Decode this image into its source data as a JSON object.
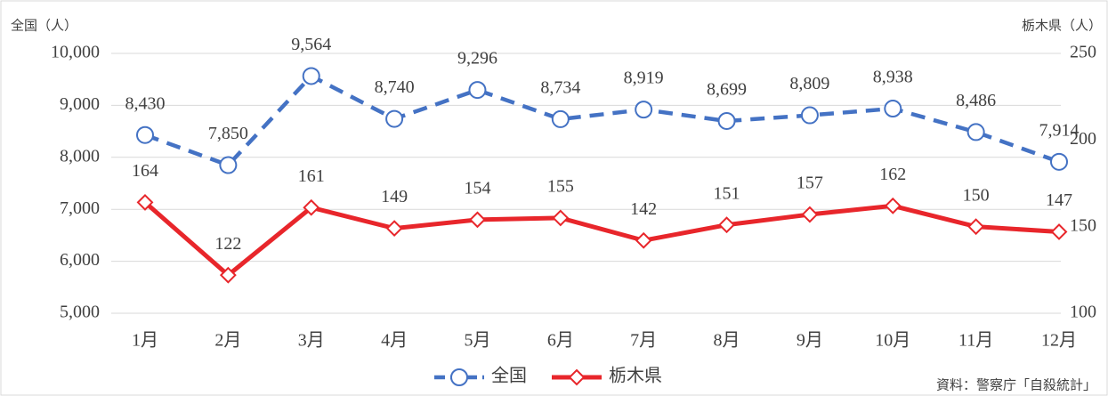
{
  "chart_data": {
    "type": "line",
    "y_label": "全国（人）",
    "y2_label": "栃木県（人）",
    "source": "資料：警察庁「自殺統計」",
    "categories": [
      "1月",
      "2月",
      "3月",
      "4月",
      "5月",
      "6月",
      "7月",
      "8月",
      "9月",
      "10月",
      "11月",
      "12月"
    ],
    "series": [
      {
        "name": "全国",
        "color": "#4472c4",
        "dashed": true,
        "marker": "circle",
        "values": [
          8430,
          7850,
          9564,
          8740,
          9296,
          8734,
          8919,
          8699,
          8809,
          8938,
          8486,
          7914
        ],
        "value_labels": [
          "8,430",
          "7,850",
          "9,564",
          "8,740",
          "9,296",
          "8,734",
          "8,919",
          "8,699",
          "8,809",
          "8,938",
          "8,486",
          "7,914"
        ]
      },
      {
        "name": "栃木県",
        "color": "#e8262b",
        "axis": "y2",
        "marker": "diamond",
        "values": [
          164,
          122,
          161,
          149,
          154,
          155,
          142,
          151,
          157,
          162,
          150,
          147
        ]
      }
    ],
    "ylim": [
      5000,
      10000
    ],
    "yticks": [
      {
        "value": 5000,
        "label": "5,000"
      },
      {
        "value": 6000,
        "label": "6,000"
      },
      {
        "value": 7000,
        "label": "7,000"
      },
      {
        "value": 8000,
        "label": "8,000"
      },
      {
        "value": 9000,
        "label": "9,000"
      },
      {
        "value": 10000,
        "label": "10,000"
      }
    ],
    "y2lim": [
      100,
      250
    ],
    "y2ticks": [
      100,
      150,
      200,
      250
    ],
    "grid": true,
    "legend": "bottom"
  }
}
